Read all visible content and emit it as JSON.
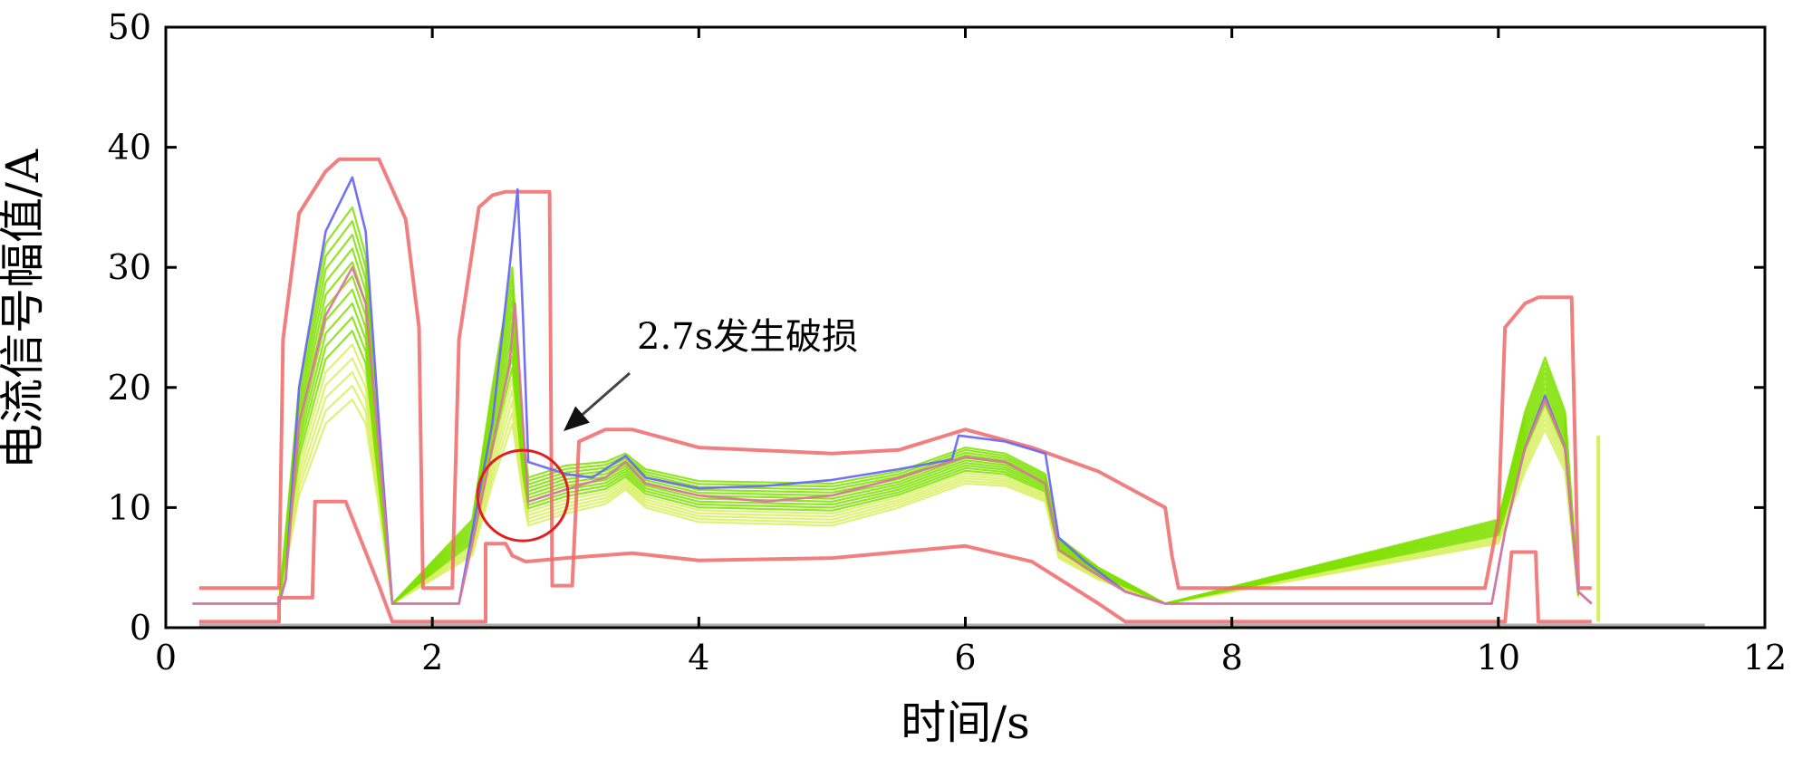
{
  "chart_data": {
    "type": "line",
    "xlabel": "时间/s",
    "ylabel": "电流信号幅值/A",
    "xlim": [
      0,
      12
    ],
    "ylim": [
      0,
      50
    ],
    "x_ticks": [
      "0",
      "2",
      "4",
      "6",
      "8",
      "10",
      "12"
    ],
    "y_ticks": [
      "0",
      "10",
      "20",
      "30",
      "40",
      "50"
    ],
    "grid": false,
    "annotation": {
      "text": "2.7s发生破损",
      "x": 2.7,
      "y": 11
    },
    "series": [
      {
        "role": "upper-envelope",
        "color": "#f06868",
        "points": [
          [
            0.25,
            3.3
          ],
          [
            0.85,
            3.3
          ],
          [
            0.88,
            24
          ],
          [
            1.0,
            34.5
          ],
          [
            1.2,
            38
          ],
          [
            1.3,
            39
          ],
          [
            1.6,
            39
          ],
          [
            1.8,
            34
          ],
          [
            1.9,
            25
          ],
          [
            1.93,
            3.3
          ],
          [
            2.15,
            3.3
          ],
          [
            2.2,
            24
          ],
          [
            2.35,
            35
          ],
          [
            2.45,
            36
          ],
          [
            2.55,
            36.3
          ],
          [
            2.88,
            36.3
          ],
          [
            2.9,
            3.5
          ],
          [
            3.05,
            3.5
          ],
          [
            3.1,
            15.5
          ],
          [
            3.3,
            16.5
          ],
          [
            3.5,
            16.5
          ],
          [
            4.0,
            15
          ],
          [
            5.0,
            14.5
          ],
          [
            5.5,
            14.8
          ],
          [
            6.0,
            16.5
          ],
          [
            6.5,
            15
          ],
          [
            7.0,
            13
          ],
          [
            7.5,
            10
          ],
          [
            7.55,
            6
          ],
          [
            7.6,
            3.3
          ],
          [
            9.9,
            3.3
          ],
          [
            10.0,
            9
          ],
          [
            10.05,
            25
          ],
          [
            10.2,
            27
          ],
          [
            10.3,
            27.5
          ],
          [
            10.55,
            27.5
          ],
          [
            10.6,
            3.3
          ],
          [
            10.7,
            3.3
          ]
        ]
      },
      {
        "role": "lower-envelope",
        "color": "#f06868",
        "points": [
          [
            0.25,
            0.5
          ],
          [
            0.85,
            0.5
          ],
          [
            0.85,
            2.5
          ],
          [
            1.1,
            2.5
          ],
          [
            1.12,
            10.5
          ],
          [
            1.35,
            10.5
          ],
          [
            1.6,
            3.5
          ],
          [
            1.7,
            0.5
          ],
          [
            2.4,
            0.5
          ],
          [
            2.4,
            7
          ],
          [
            2.55,
            7
          ],
          [
            2.6,
            6
          ],
          [
            2.7,
            5.5
          ],
          [
            3.0,
            5.8
          ],
          [
            3.5,
            6.2
          ],
          [
            4.0,
            5.6
          ],
          [
            5.0,
            5.8
          ],
          [
            6.0,
            6.8
          ],
          [
            6.5,
            5.5
          ],
          [
            7.0,
            2
          ],
          [
            7.2,
            0.5
          ],
          [
            10.05,
            0.5
          ],
          [
            10.1,
            6.3
          ],
          [
            10.28,
            6.3
          ],
          [
            10.3,
            0.5
          ],
          [
            10.7,
            0.5
          ]
        ]
      },
      {
        "role": "measured-signal",
        "color": "#6a6af2",
        "points": [
          [
            0.2,
            2.0
          ],
          [
            0.85,
            2.0
          ],
          [
            0.9,
            4
          ],
          [
            1.0,
            20
          ],
          [
            1.2,
            33
          ],
          [
            1.4,
            37.5
          ],
          [
            1.5,
            33
          ],
          [
            1.6,
            17
          ],
          [
            1.7,
            2.0
          ],
          [
            2.2,
            2.0
          ],
          [
            2.3,
            8
          ],
          [
            2.45,
            17
          ],
          [
            2.58,
            30
          ],
          [
            2.64,
            36.5
          ],
          [
            2.68,
            26
          ],
          [
            2.72,
            13.8
          ],
          [
            3.0,
            12.8
          ],
          [
            3.2,
            12.5
          ],
          [
            3.45,
            14.3
          ],
          [
            3.6,
            12.5
          ],
          [
            4.0,
            11.6
          ],
          [
            4.5,
            11.8
          ],
          [
            5.0,
            12.3
          ],
          [
            5.5,
            13.2
          ],
          [
            5.9,
            14.0
          ],
          [
            5.95,
            16.0
          ],
          [
            6.3,
            15.5
          ],
          [
            6.6,
            14.5
          ],
          [
            6.7,
            7.5
          ],
          [
            6.9,
            5.5
          ],
          [
            7.2,
            3.0
          ],
          [
            7.5,
            2.0
          ],
          [
            9.95,
            2.0
          ],
          [
            10.05,
            8
          ],
          [
            10.2,
            15
          ],
          [
            10.35,
            19.3
          ],
          [
            10.5,
            15
          ],
          [
            10.6,
            3
          ],
          [
            10.7,
            2.0
          ]
        ]
      },
      {
        "role": "mean-signal",
        "color": "#d9789a",
        "points": [
          [
            0.2,
            2.0
          ],
          [
            0.85,
            2.0
          ],
          [
            0.9,
            4
          ],
          [
            1.0,
            17
          ],
          [
            1.2,
            26
          ],
          [
            1.4,
            30
          ],
          [
            1.5,
            27
          ],
          [
            1.6,
            15
          ],
          [
            1.7,
            2.0
          ],
          [
            2.2,
            2.0
          ],
          [
            2.3,
            7
          ],
          [
            2.45,
            15
          ],
          [
            2.58,
            22
          ],
          [
            2.62,
            27
          ],
          [
            2.68,
            17
          ],
          [
            2.72,
            10.5
          ],
          [
            3.0,
            11.5
          ],
          [
            3.3,
            12.5
          ],
          [
            3.45,
            13.8
          ],
          [
            3.6,
            12.0
          ],
          [
            4.0,
            11.0
          ],
          [
            4.5,
            10.5
          ],
          [
            5.0,
            11.0
          ],
          [
            5.5,
            12.5
          ],
          [
            6.0,
            14.2
          ],
          [
            6.3,
            13.8
          ],
          [
            6.6,
            12.0
          ],
          [
            6.7,
            6.5
          ],
          [
            6.9,
            5.0
          ],
          [
            7.2,
            3.0
          ],
          [
            7.5,
            2.0
          ],
          [
            9.95,
            2.0
          ],
          [
            10.05,
            8
          ],
          [
            10.2,
            15
          ],
          [
            10.35,
            19.0
          ],
          [
            10.5,
            15
          ],
          [
            10.6,
            3
          ],
          [
            10.7,
            2.0
          ]
        ]
      },
      {
        "role": "normal-samples-band-top",
        "color": "#7fe000",
        "points": [
          [
            0.85,
            2.0
          ],
          [
            1.0,
            20
          ],
          [
            1.2,
            32
          ],
          [
            1.4,
            35
          ],
          [
            1.5,
            31
          ],
          [
            1.6,
            15
          ],
          [
            1.7,
            2.0
          ],
          [
            2.3,
            9
          ],
          [
            2.45,
            20
          ],
          [
            2.6,
            30
          ],
          [
            2.68,
            16
          ],
          [
            2.72,
            12.5
          ],
          [
            3.0,
            13.5
          ],
          [
            3.3,
            13.8
          ],
          [
            3.45,
            14.5
          ],
          [
            3.6,
            13.2
          ],
          [
            4.0,
            12.2
          ],
          [
            5.0,
            12.0
          ],
          [
            5.5,
            13.0
          ],
          [
            6.0,
            15.0
          ],
          [
            6.3,
            14.5
          ],
          [
            6.6,
            12.8
          ],
          [
            6.7,
            7.5
          ],
          [
            7.0,
            5
          ],
          [
            7.5,
            2.0
          ],
          [
            10.0,
            9
          ],
          [
            10.2,
            18
          ],
          [
            10.35,
            22.5
          ],
          [
            10.5,
            18
          ],
          [
            10.6,
            3
          ]
        ]
      },
      {
        "role": "normal-samples-band-bottom",
        "color": "#d8f060",
        "points": [
          [
            0.85,
            2.0
          ],
          [
            1.0,
            11
          ],
          [
            1.2,
            17
          ],
          [
            1.4,
            19
          ],
          [
            1.5,
            17
          ],
          [
            1.6,
            10
          ],
          [
            1.7,
            2.0
          ],
          [
            2.3,
            6
          ],
          [
            2.45,
            12
          ],
          [
            2.6,
            17
          ],
          [
            2.68,
            11
          ],
          [
            2.72,
            8.5
          ],
          [
            3.0,
            9.5
          ],
          [
            3.3,
            10.3
          ],
          [
            3.45,
            11.5
          ],
          [
            3.6,
            10.0
          ],
          [
            4.0,
            8.8
          ],
          [
            5.0,
            8.5
          ],
          [
            5.5,
            10.0
          ],
          [
            6.0,
            12.0
          ],
          [
            6.3,
            11.8
          ],
          [
            6.6,
            10.5
          ],
          [
            6.7,
            5.8
          ],
          [
            7.0,
            4
          ],
          [
            7.5,
            2.0
          ],
          [
            10.0,
            7
          ],
          [
            10.2,
            13
          ],
          [
            10.35,
            16.5
          ],
          [
            10.5,
            13
          ],
          [
            10.6,
            2.5
          ]
        ]
      }
    ]
  }
}
